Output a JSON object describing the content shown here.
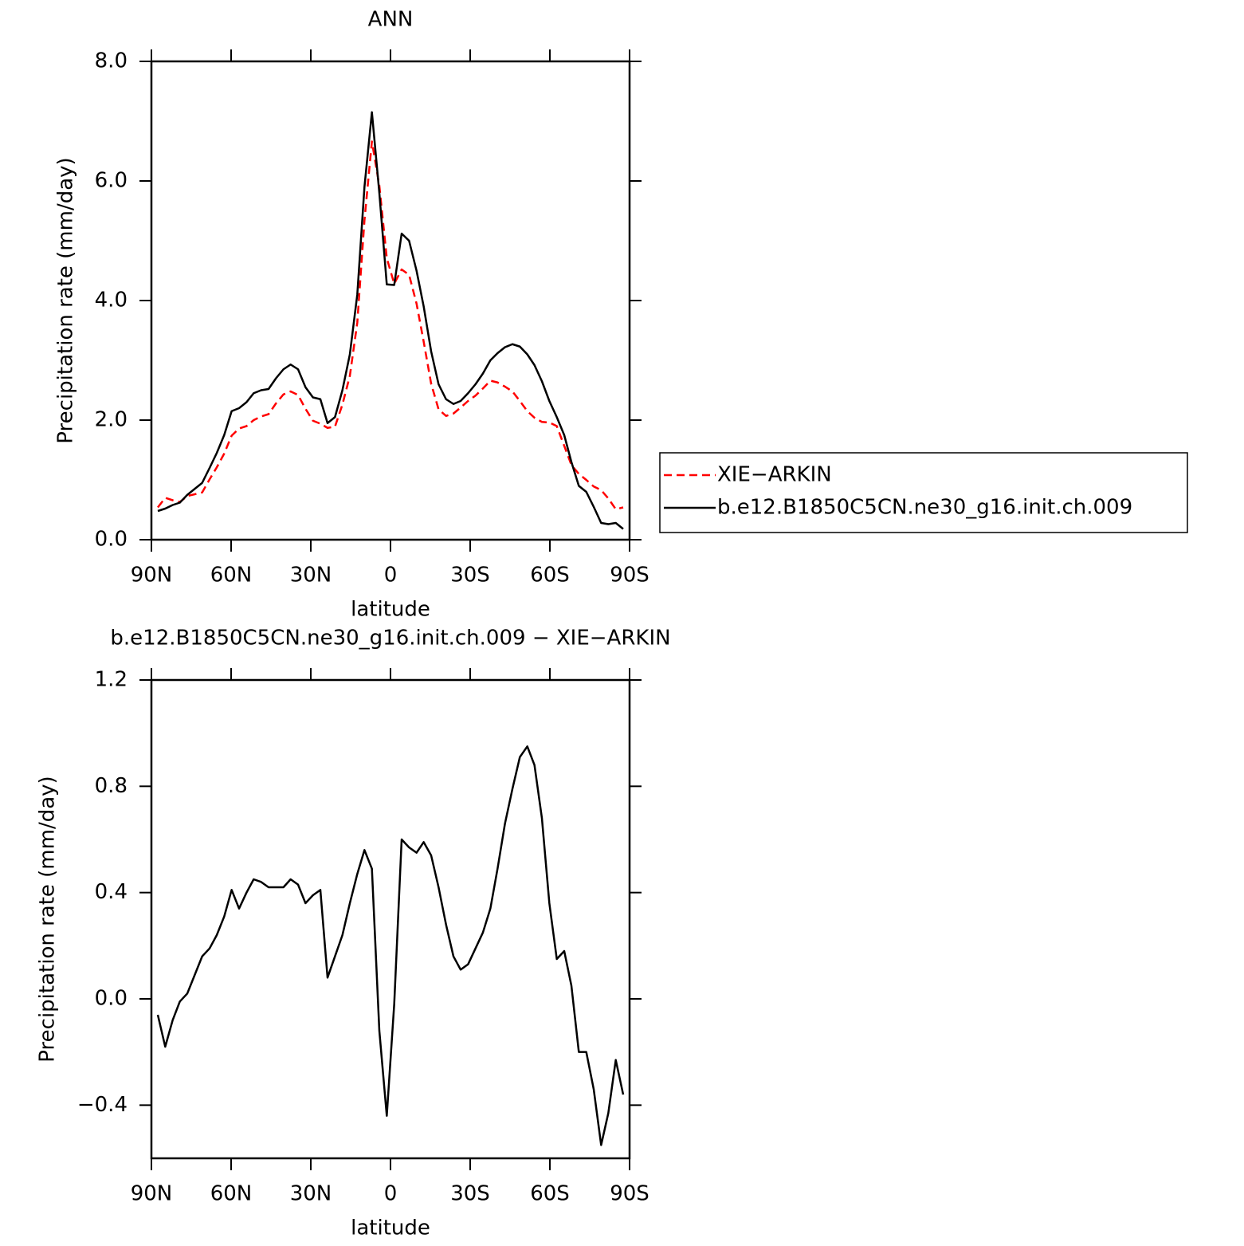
{
  "chart_data": [
    {
      "type": "line",
      "title": "ANN",
      "xlabel": "latitude",
      "ylabel": "Precipitation rate (mm/day)",
      "x": [
        87.6,
        84.8,
        82.0,
        79.3,
        76.5,
        73.7,
        70.9,
        68.1,
        65.4,
        62.6,
        59.8,
        57.0,
        54.2,
        51.5,
        48.7,
        45.9,
        43.1,
        40.3,
        37.6,
        34.8,
        32.0,
        29.2,
        26.4,
        23.7,
        20.9,
        18.1,
        15.3,
        12.5,
        9.8,
        7.0,
        4.2,
        1.4,
        -1.4,
        -4.2,
        -7.0,
        -9.8,
        -12.5,
        -15.3,
        -18.1,
        -20.9,
        -23.7,
        -26.4,
        -29.2,
        -32.0,
        -34.8,
        -37.6,
        -40.3,
        -43.1,
        -45.9,
        -48.7,
        -51.5,
        -54.2,
        -57.0,
        -59.8,
        -62.6,
        -65.4,
        -68.1,
        -70.9,
        -73.7,
        -76.5,
        -79.3,
        -82.0,
        -84.8,
        -87.6
      ],
      "series": [
        {
          "name": "XIE−ARKIN",
          "color": "#ff0000",
          "line_style": "dashed",
          "values": [
            0.54,
            0.7,
            0.66,
            0.63,
            0.73,
            0.76,
            0.79,
            1.01,
            1.21,
            1.44,
            1.74,
            1.86,
            1.9,
            2.0,
            2.06,
            2.1,
            2.28,
            2.43,
            2.48,
            2.42,
            2.19,
            1.99,
            1.94,
            1.87,
            1.89,
            2.26,
            2.74,
            3.63,
            5.34,
            6.66,
            5.92,
            4.71,
            4.28,
            4.52,
            4.43,
            3.95,
            3.31,
            2.61,
            2.18,
            2.07,
            2.11,
            2.21,
            2.32,
            2.41,
            2.53,
            2.66,
            2.63,
            2.56,
            2.48,
            2.32,
            2.15,
            2.04,
            1.97,
            1.96,
            1.9,
            1.57,
            1.25,
            1.1,
            1.0,
            0.89,
            0.83,
            0.69,
            0.51,
            0.54
          ]
        },
        {
          "name": "b.e12.B1850C5CN.ne30_g16.init.ch.009",
          "color": "#000000",
          "line_style": "solid",
          "values": [
            0.48,
            0.52,
            0.58,
            0.62,
            0.75,
            0.85,
            0.95,
            1.2,
            1.45,
            1.75,
            2.15,
            2.2,
            2.3,
            2.45,
            2.5,
            2.52,
            2.7,
            2.85,
            2.93,
            2.85,
            2.55,
            2.38,
            2.35,
            1.95,
            2.05,
            2.5,
            3.1,
            4.1,
            5.9,
            7.15,
            5.8,
            4.27,
            4.26,
            5.12,
            5.0,
            4.5,
            3.9,
            3.15,
            2.6,
            2.35,
            2.27,
            2.32,
            2.45,
            2.6,
            2.78,
            3.0,
            3.12,
            3.22,
            3.27,
            3.23,
            3.1,
            2.92,
            2.65,
            2.32,
            2.05,
            1.75,
            1.3,
            0.9,
            0.8,
            0.55,
            0.28,
            0.26,
            0.28,
            0.18
          ]
        }
      ],
      "xlim": [
        90,
        -90
      ],
      "xticks": [
        {
          "value": 90,
          "label": "90N"
        },
        {
          "value": 60,
          "label": "60N"
        },
        {
          "value": 30,
          "label": "30N"
        },
        0,
        {
          "value": -30,
          "label": "30S"
        },
        {
          "value": -60,
          "label": "60S"
        },
        {
          "value": -90,
          "label": "90S"
        }
      ],
      "ylim": [
        0,
        8
      ],
      "yticks": [
        {
          "value": 0,
          "label": "0.0"
        },
        {
          "value": 2,
          "label": "2.0"
        },
        {
          "value": 4,
          "label": "4.0"
        },
        {
          "value": 6,
          "label": "6.0"
        },
        {
          "value": 8,
          "label": "8.0"
        }
      ],
      "legend": "right"
    },
    {
      "type": "line",
      "title": "b.e12.B1850C5CN.ne30_g16.init.ch.009 − XIE−ARKIN",
      "xlabel": "latitude",
      "ylabel": "Precipitation rate (mm/day)",
      "x": [
        87.6,
        84.8,
        82.0,
        79.3,
        76.5,
        73.7,
        70.9,
        68.1,
        65.4,
        62.6,
        59.8,
        57.0,
        54.2,
        51.5,
        48.7,
        45.9,
        43.1,
        40.3,
        37.6,
        34.8,
        32.0,
        29.2,
        26.4,
        23.7,
        20.9,
        18.1,
        15.3,
        12.5,
        9.8,
        7.0,
        4.2,
        1.4,
        -1.4,
        -4.2,
        -7.0,
        -9.8,
        -12.5,
        -15.3,
        -18.1,
        -20.9,
        -23.7,
        -26.4,
        -29.2,
        -32.0,
        -34.8,
        -37.6,
        -40.3,
        -43.1,
        -45.9,
        -48.7,
        -51.5,
        -54.2,
        -57.0,
        -59.8,
        -62.6,
        -65.4,
        -68.1,
        -70.9,
        -73.7,
        -76.5,
        -79.3,
        -82.0,
        -84.8,
        -87.6
      ],
      "series": [
        {
          "color": "#000000",
          "line_style": "solid",
          "values": [
            -0.06,
            -0.18,
            -0.08,
            -0.01,
            0.02,
            0.09,
            0.16,
            0.19,
            0.24,
            0.31,
            0.41,
            0.34,
            0.4,
            0.45,
            0.44,
            0.42,
            0.42,
            0.42,
            0.45,
            0.43,
            0.36,
            0.39,
            0.41,
            0.08,
            0.16,
            0.24,
            0.36,
            0.47,
            0.56,
            0.49,
            -0.12,
            -0.44,
            -0.02,
            0.6,
            0.57,
            0.55,
            0.59,
            0.54,
            0.42,
            0.28,
            0.16,
            0.11,
            0.13,
            0.19,
            0.25,
            0.34,
            0.49,
            0.66,
            0.79,
            0.91,
            0.95,
            0.88,
            0.68,
            0.36,
            0.15,
            0.18,
            0.05,
            -0.2,
            -0.2,
            -0.34,
            -0.55,
            -0.43,
            -0.23,
            -0.36
          ]
        }
      ],
      "xlim": [
        90,
        -90
      ],
      "xticks": [
        {
          "value": 90,
          "label": "90N"
        },
        {
          "value": 60,
          "label": "60N"
        },
        {
          "value": 30,
          "label": "30N"
        },
        0,
        {
          "value": -30,
          "label": "30S"
        },
        {
          "value": -60,
          "label": "60S"
        },
        {
          "value": -90,
          "label": "90S"
        }
      ],
      "ylim": [
        -0.6,
        1.2
      ],
      "yticks": [
        {
          "value": -0.4,
          "label": "−0.4"
        },
        {
          "value": 0,
          "label": "0.0"
        },
        0.4,
        0.8,
        1.2
      ]
    }
  ]
}
